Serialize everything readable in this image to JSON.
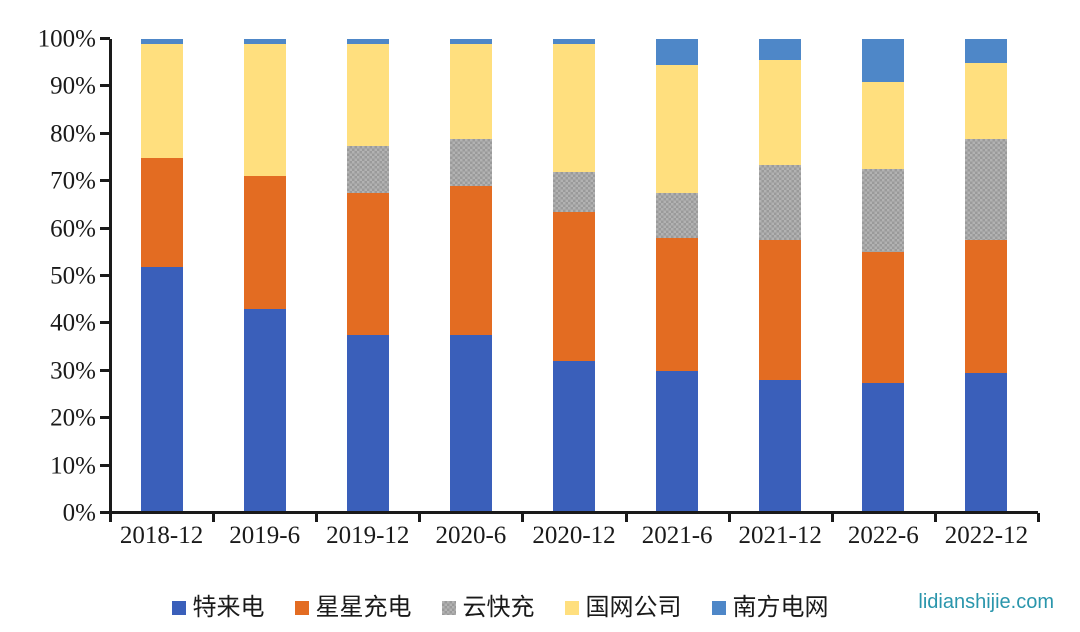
{
  "watermark": {
    "text": "lidianshijie.com",
    "color": "#2a96ac"
  },
  "axis_color": "#1a1a1a",
  "chart_data": {
    "type": "bar",
    "variant": "stacked-100-percent",
    "title": "",
    "xlabel": "",
    "ylabel": "",
    "grid": false,
    "legend_position": "bottom",
    "categories": [
      "2018-12",
      "2019-6",
      "2019-12",
      "2020-6",
      "2020-12",
      "2021-6",
      "2021-12",
      "2022-6",
      "2022-12"
    ],
    "series": [
      {
        "name": "特来电",
        "color": "#3a5fba",
        "pattern": false,
        "values": [
          52,
          43,
          37.5,
          37.5,
          32,
          30,
          28,
          27.5,
          29.5
        ]
      },
      {
        "name": "星星充电",
        "color": "#e36c22",
        "pattern": false,
        "values": [
          23,
          28,
          30,
          31.5,
          31.5,
          28,
          29.5,
          27.5,
          28
        ]
      },
      {
        "name": "云快充",
        "color": "#a6a6a6",
        "pattern": true,
        "values": [
          0,
          0,
          10,
          10,
          8.5,
          9.5,
          16,
          17.5,
          21.5
        ]
      },
      {
        "name": "国网公司",
        "color": "#ffdf7e",
        "pattern": false,
        "values": [
          24,
          28,
          21.5,
          20,
          27,
          27,
          22,
          18.5,
          16
        ]
      },
      {
        "name": "南方电网",
        "color": "#4e87c8",
        "pattern": false,
        "values": [
          1,
          1,
          1,
          1,
          1,
          5.5,
          4.5,
          9,
          5
        ]
      }
    ],
    "y_axis": {
      "min": 0,
      "max": 100,
      "tick_step": 10,
      "tick_labels": [
        "0%",
        "10%",
        "20%",
        "30%",
        "40%",
        "50%",
        "60%",
        "70%",
        "80%",
        "90%",
        "100%"
      ]
    }
  }
}
